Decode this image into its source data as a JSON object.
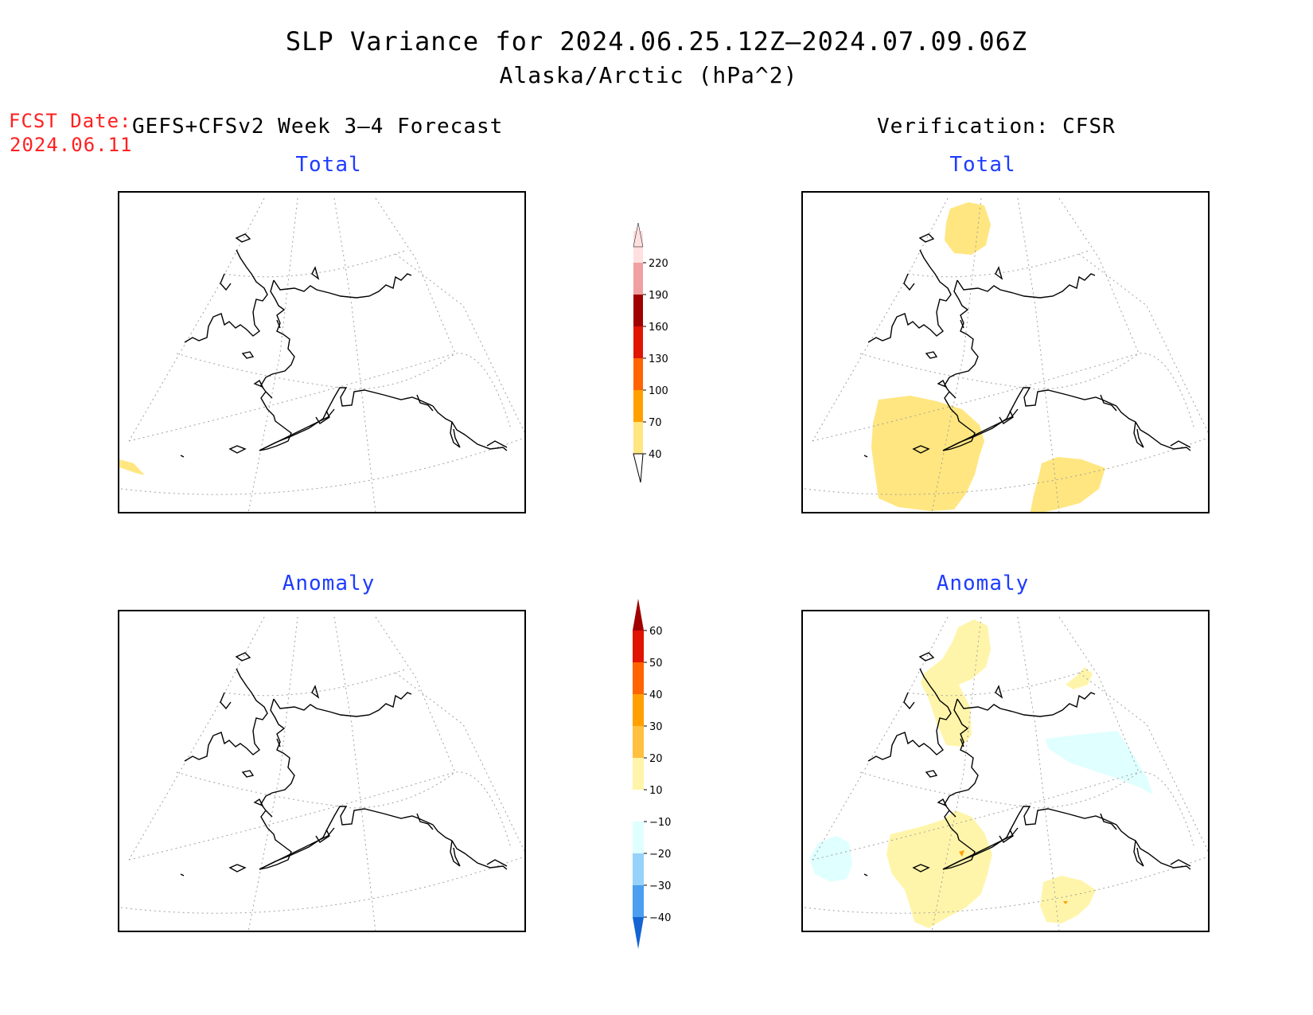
{
  "header": {
    "title": "SLP Variance for 2024.06.25.12Z–2024.07.09.06Z",
    "subtitle": "Alaska/Arctic (hPa^2)",
    "fcst_label": "FCST Date:",
    "fcst_date": "2024.06.11",
    "left_column_title": "GEFS+CFSv2 Week 3–4 Forecast",
    "right_column_title": "Verification: CFSR"
  },
  "panels": {
    "forecast_total": {
      "title": "Total"
    },
    "verification_total": {
      "title": "Total"
    },
    "forecast_anomaly": {
      "title": "Anomaly"
    },
    "verification_anomaly": {
      "title": "Anomaly"
    }
  },
  "colorbars": {
    "total": {
      "levels": [
        "40",
        "70",
        "100",
        "130",
        "160",
        "190",
        "220"
      ],
      "colors": [
        "#ffe680",
        "#ffa000",
        "#ff6400",
        "#e01400",
        "#a00000",
        "#f0a0a0",
        "#ffe0e0"
      ]
    },
    "anomaly": {
      "levels": [
        "60",
        "50",
        "40",
        "30",
        "20",
        "10",
        "−10",
        "−20",
        "−30",
        "−40"
      ],
      "colors_top_to_bottom": [
        "#a00000",
        "#e01400",
        "#ff6400",
        "#ffa000",
        "#ffc040",
        "#fff5aa",
        "#ffffff",
        "#e0ffff",
        "#96d2fa",
        "#4b9ef0",
        "#1464d2"
      ]
    }
  },
  "map_layers": {
    "coastline_color": "#000000",
    "graticule_color": "#a0a0a0",
    "total_shading_color": "#ffe680",
    "anomaly_positive_color": "#fff5aa",
    "anomaly_negative_color": "#e0ffff",
    "anomaly_point_color": "#ffa000"
  }
}
